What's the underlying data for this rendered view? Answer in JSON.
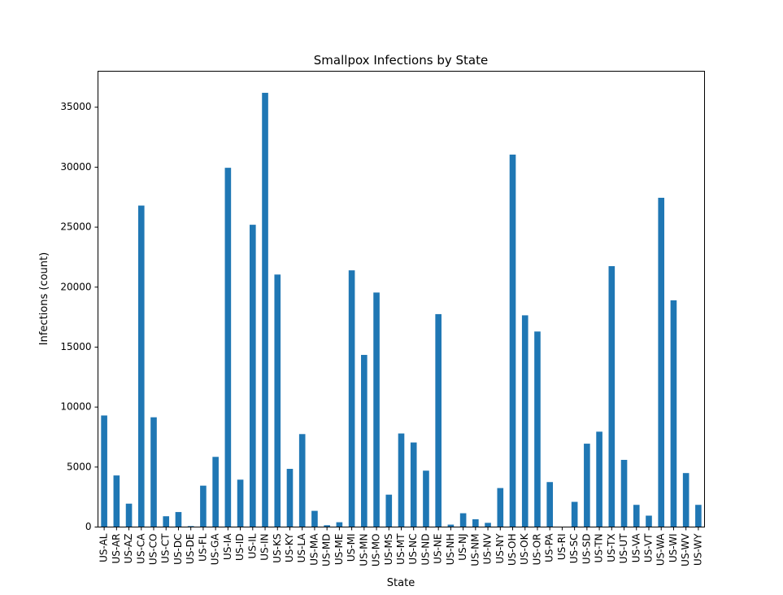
{
  "chart_data": {
    "type": "bar",
    "title": "Smallpox Infections by State",
    "xlabel": "State",
    "ylabel": "Infections (count)",
    "ylim": [
      0,
      38000
    ],
    "yticks": [
      0,
      5000,
      10000,
      15000,
      20000,
      25000,
      30000,
      35000
    ],
    "grid": false,
    "bar_color": "#1f77b4",
    "categories": [
      "US-AL",
      "US-AR",
      "US-AZ",
      "US-CA",
      "US-CO",
      "US-CT",
      "US-DC",
      "US-DE",
      "US-FL",
      "US-GA",
      "US-IA",
      "US-ID",
      "US-IL",
      "US-IN",
      "US-KS",
      "US-KY",
      "US-LA",
      "US-MA",
      "US-MD",
      "US-ME",
      "US-MI",
      "US-MN",
      "US-MO",
      "US-MS",
      "US-MT",
      "US-NC",
      "US-ND",
      "US-NE",
      "US-NH",
      "US-NJ",
      "US-NM",
      "US-NV",
      "US-NY",
      "US-OH",
      "US-OK",
      "US-OR",
      "US-PA",
      "US-RI",
      "US-SC",
      "US-SD",
      "US-TN",
      "US-TX",
      "US-UT",
      "US-VA",
      "US-VT",
      "US-WA",
      "US-WI",
      "US-WV",
      "US-WY"
    ],
    "values": [
      9300,
      4300,
      1950,
      26800,
      9150,
      900,
      1250,
      80,
      3450,
      5850,
      29950,
      3950,
      25200,
      36200,
      21050,
      4850,
      7750,
      1350,
      150,
      400,
      21400,
      14350,
      19550,
      2700,
      7800,
      7050,
      4700,
      17750,
      200,
      1150,
      650,
      350,
      3250,
      31050,
      17650,
      16300,
      3750,
      20,
      2100,
      6950,
      7950,
      21750,
      5600,
      1850,
      950,
      27450,
      18900,
      4500,
      1850
    ]
  }
}
